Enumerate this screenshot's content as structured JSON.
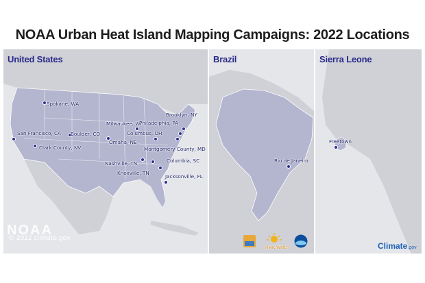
{
  "title": "NOAA Urban Heat Island Mapping Campaigns: 2022 Locations",
  "panels": {
    "us": {
      "label": "United States"
    },
    "brazil": {
      "label": "Brazil"
    },
    "sierra_leone": {
      "label": "Sierra Leone"
    }
  },
  "us_cities": [
    "Spokane, WA",
    "San Francisco, CA",
    "Clark County, NV",
    "Boulder, CO",
    "Milwaukee, WI",
    "Omaha, NE",
    "Brooklyn, NY",
    "Philadelphia, PA",
    "Columbus, OH",
    "Montgomery County, MD",
    "Nashville, TN",
    "Columbia, SC",
    "Knoxville, TN",
    "Jacksonville, FL"
  ],
  "brazil_cities": [
    "Rio de Janeiro"
  ],
  "sierra_leone_cities": [
    "Freetown"
  ],
  "footer": {
    "watermark": "NOAA",
    "credit": "© 2022 climate.gov",
    "logos": [
      "noaa-logo",
      "heat-watch-logo",
      "nihhis-logo"
    ],
    "heat_watch_label": "Heat Watch",
    "climate_brand": "Climate",
    "climate_suffix": ".gov"
  },
  "colors": {
    "land_highlight": "#b4b5cf",
    "land_other": "#cfd1d6",
    "ocean": "#e4e6ea",
    "label": "#2b2a8a",
    "dot": "#2d2f8f"
  }
}
